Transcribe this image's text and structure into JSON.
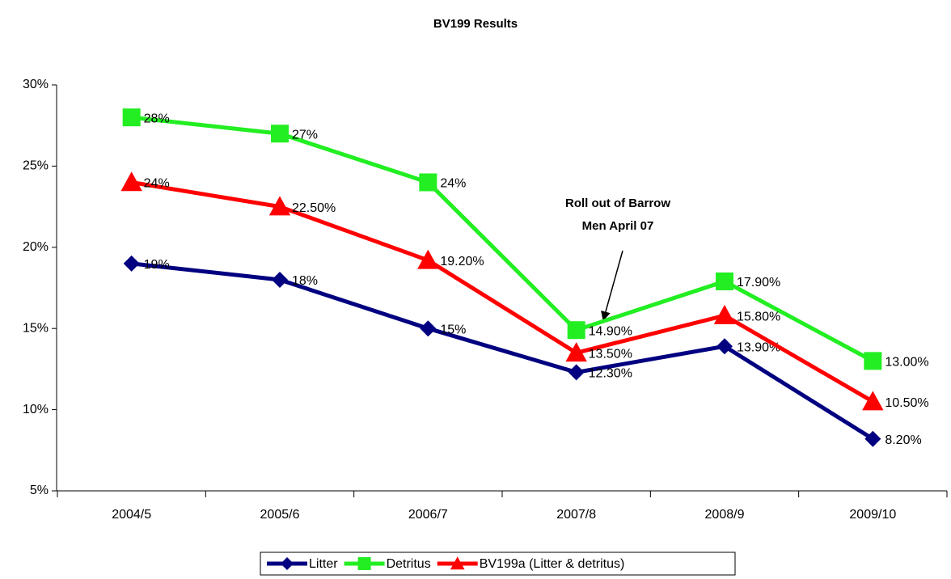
{
  "chart_data": {
    "type": "line",
    "title": "BV199 Results",
    "categories": [
      "2004/5",
      "2005/6",
      "2006/7",
      "2007/8",
      "2008/9",
      "2009/10"
    ],
    "series": [
      {
        "name": "Litter",
        "color": "#000080",
        "marker": "diamond",
        "values": [
          19,
          18,
          15,
          12.3,
          13.9,
          8.2
        ],
        "value_labels": [
          "19%",
          "18%",
          "15%",
          "12.30%",
          "13.90%",
          "8.20%"
        ]
      },
      {
        "name": "Detritus",
        "color": "#22ee22",
        "marker": "square",
        "values": [
          28,
          27,
          24,
          14.9,
          17.9,
          13
        ],
        "value_labels": [
          "28%",
          "27%",
          "24%",
          "14.90%",
          "17.90%",
          "13.00%"
        ]
      },
      {
        "name": "BV199a (Litter & detritus)",
        "color": "#ff0000",
        "marker": "triangle",
        "values": [
          24,
          22.5,
          19.2,
          13.5,
          15.8,
          10.5
        ],
        "value_labels": [
          "24%",
          "22.50%",
          "19.20%",
          "13.50%",
          "15.80%",
          "10.50%"
        ]
      }
    ],
    "ylim": [
      5,
      30
    ],
    "yticks": [
      {
        "value": 5,
        "label": "5%"
      },
      {
        "value": 10,
        "label": "10%"
      },
      {
        "value": 15,
        "label": "15%"
      },
      {
        "value": 20,
        "label": "20%"
      },
      {
        "value": 25,
        "label": "25%"
      },
      {
        "value": 30,
        "label": "30%"
      }
    ],
    "annotation": [
      "Roll out of Barrow",
      "Men April 07"
    ],
    "legend": "bottom"
  }
}
